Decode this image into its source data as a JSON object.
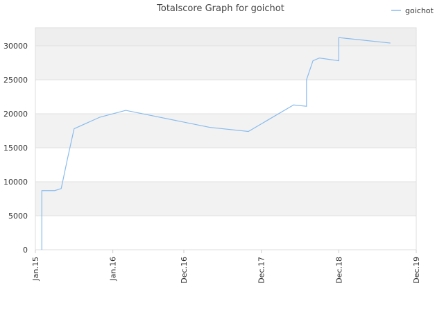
{
  "chart_data": {
    "type": "line",
    "title": "Totalscore Graph for goichot",
    "x": [
      "2015-02",
      "2015-02",
      "2015-04",
      "2015-05",
      "2015-06",
      "2015-07",
      "2015-11",
      "2016-03",
      "2017-04",
      "2017-10",
      "2018-05",
      "2018-07",
      "2018-07",
      "2018-08",
      "2018-09",
      "2018-12",
      "2018-12",
      "2019-08"
    ],
    "series": [
      {
        "name": "goichot",
        "color": "#88bbee",
        "values": [
          0,
          8700,
          8700,
          9000,
          13500,
          17800,
          19500,
          20500,
          18000,
          17400,
          21300,
          21100,
          25000,
          27800,
          28200,
          27800,
          31200,
          30400
        ]
      }
    ],
    "xlim": [
      "2015-01",
      "2019-12"
    ],
    "xticks": [
      {
        "value": "2015-01",
        "label": "Jan.15"
      },
      {
        "value": "2016-01",
        "label": "Jan.16"
      },
      {
        "value": "2016-12",
        "label": "Dec.16"
      },
      {
        "value": "2017-12",
        "label": "Dec.17"
      },
      {
        "value": "2018-12",
        "label": "Dec.18"
      },
      {
        "value": "2019-12",
        "label": "Dec.19"
      }
    ],
    "ylim": [
      0,
      32650
    ],
    "yticks": [
      0,
      5000,
      10000,
      15000,
      20000,
      25000,
      30000
    ],
    "grid": true,
    "bands": true,
    "legend": "top-right"
  }
}
